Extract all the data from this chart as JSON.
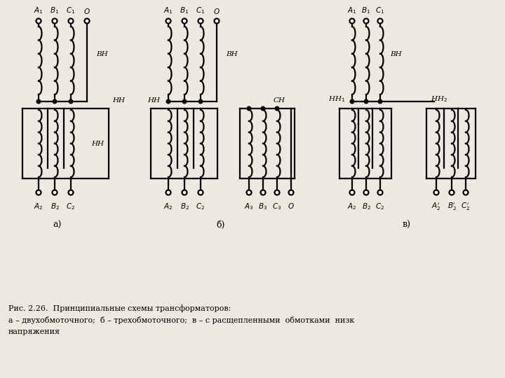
{
  "bg_color": "#ede8e0",
  "line_color": "#000000",
  "caption_line1": "Рис. 2.26.  Принципиальные схемы трансформаторов:",
  "caption_line2": "а – двухобмоточного;  б – трехобмоточного;  в – с расщепленными  обмотками  низк",
  "caption_line3": "напряжения"
}
